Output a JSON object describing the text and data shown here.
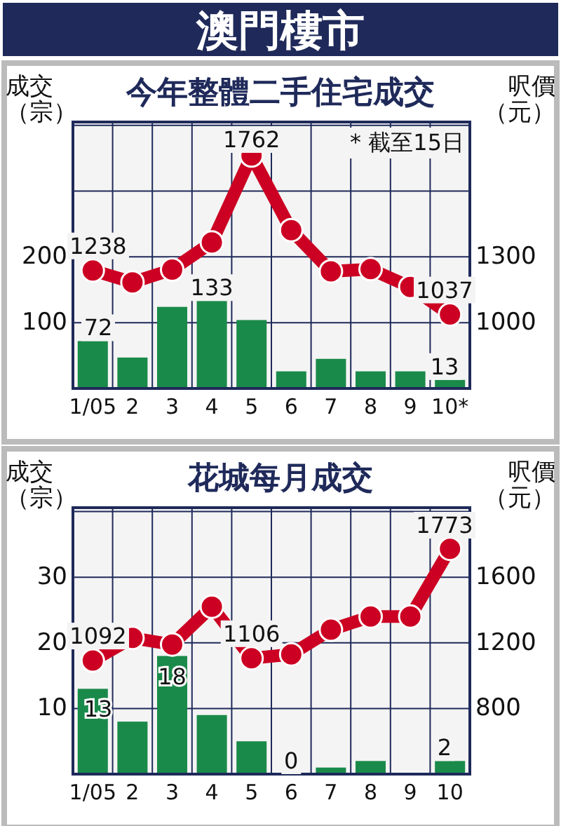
{
  "chart_data": [
    {
      "type": "bar",
      "title": "澳門樓市",
      "subtitle": "今年整體二手住宅成交",
      "ylabel": "成交（宗）",
      "y2label": "呎價（元）",
      "annotations": [
        "* 截至15日"
      ],
      "categories": [
        "1/05",
        "2",
        "3",
        "4",
        "5",
        "6",
        "7",
        "8",
        "9",
        "10*"
      ],
      "series": [
        {
          "color": "#1a8a4a",
          "values": [
            72,
            47,
            124,
            133,
            104,
            26,
            45,
            26,
            26,
            13
          ],
          "value_labels": [
            "72",
            null,
            null,
            "133",
            null,
            null,
            null,
            null,
            null,
            "13"
          ]
        },
        {
          "type": "line",
          "axis": "y2",
          "color": "#cc0022",
          "marker": "circle",
          "values": [
            1238,
            1184,
            1242,
            1366,
            1762,
            1422,
            1234,
            1244,
            1163,
            1037
          ],
          "value_labels": [
            "1238",
            null,
            null,
            null,
            "1762",
            null,
            null,
            null,
            null,
            "1037"
          ]
        }
      ],
      "ylim": [
        0,
        405
      ],
      "yticks": [
        {
          "value": 100,
          "label": "100"
        },
        {
          "value": 200,
          "label": "200"
        },
        {
          "value": 300,
          "label": null
        },
        {
          "value": 400,
          "label": null
        }
      ],
      "y2lim": [
        700,
        1915
      ],
      "y2ticks": [
        1000,
        1300
      ],
      "grid": true
    },
    {
      "type": "bar",
      "title": "花城每月成交",
      "ylabel": "成交（宗）",
      "y2label": "呎價（元）",
      "categories": [
        "1/05",
        "2",
        "3",
        "4",
        "5",
        "6",
        "7",
        "8",
        "9",
        "10"
      ],
      "series": [
        {
          "color": "#1a8a4a",
          "values": [
            13,
            8,
            18,
            9,
            5,
            0,
            1,
            2,
            0,
            2
          ],
          "value_labels": [
            "13",
            null,
            "18",
            null,
            null,
            "0",
            null,
            null,
            null,
            "2"
          ]
        },
        {
          "type": "line",
          "axis": "y2",
          "color": "#cc0022",
          "marker": "circle",
          "values": [
            1092,
            1230,
            1190,
            1420,
            1106,
            1130,
            1280,
            1360,
            1360,
            1773
          ],
          "value_labels": [
            "1092",
            null,
            null,
            null,
            "1106",
            null,
            null,
            null,
            null,
            "1773"
          ]
        }
      ],
      "ylim": [
        0,
        40.6
      ],
      "yticks": [
        10,
        20,
        30,
        {
          "value": 40,
          "label": null
        }
      ],
      "y2lim": [
        400,
        2024
      ],
      "y2ticks": [
        800,
        1200,
        1600
      ],
      "grid": true
    }
  ]
}
